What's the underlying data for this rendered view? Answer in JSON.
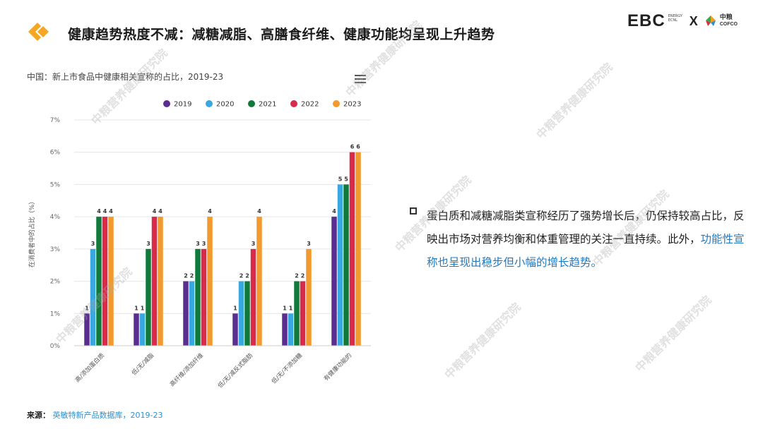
{
  "header": {
    "title": "健康趋势热度不减：减糖减脂、高膳食纤维、健康功能均呈现上升趋势",
    "brand_ebc": "EBC",
    "brand_ebc_sub": "ENERGY ECNL",
    "brand_x": "X",
    "brand_cofco_cn": "中粮",
    "brand_cofco_en": "COFCO"
  },
  "chart_title": "中国：新上市食品中健康相关宣称的占比，2019-23",
  "chart_data": {
    "type": "bar",
    "categories": [
      "高/添加蛋白质",
      "低/无/减脂",
      "高纤维/添加纤维",
      "低/无/减反式脂肪",
      "低/无/不添加糖",
      "有健康功能的"
    ],
    "series": [
      {
        "name": "2019",
        "color": "#5b2d90",
        "values": [
          1,
          1,
          2,
          1,
          1,
          4
        ]
      },
      {
        "name": "2020",
        "color": "#3aa8e0",
        "values": [
          3,
          1,
          2,
          2,
          1,
          5
        ]
      },
      {
        "name": "2021",
        "color": "#0f7a3c",
        "values": [
          4,
          3,
          3,
          2,
          2,
          5
        ]
      },
      {
        "name": "2022",
        "color": "#d92a4a",
        "values": [
          4,
          4,
          3,
          3,
          2,
          6
        ]
      },
      {
        "name": "2023",
        "color": "#f29a2e",
        "values": [
          4,
          4,
          4,
          4,
          3,
          6
        ]
      }
    ],
    "ylabel": "在消费者中的占比（%）",
    "ylim": [
      0,
      7
    ],
    "yticks": [
      "0%",
      "1%",
      "2%",
      "3%",
      "4%",
      "5%",
      "6%",
      "7%"
    ],
    "grid": true,
    "legend": "top-right"
  },
  "source": {
    "label": "来源：",
    "text": "英敏特新产品数据库，2019-23"
  },
  "body": {
    "text_main": "蛋白质和减糖减脂类宣称经历了强势增长后，仍保持较高占比，反映出市场对营养均衡和体重管理的关注一直持续。此外，",
    "text_highlight": "功能性宣称也呈现出稳步但小幅的增长趋势。"
  },
  "watermark": "中粮营养健康研究院"
}
